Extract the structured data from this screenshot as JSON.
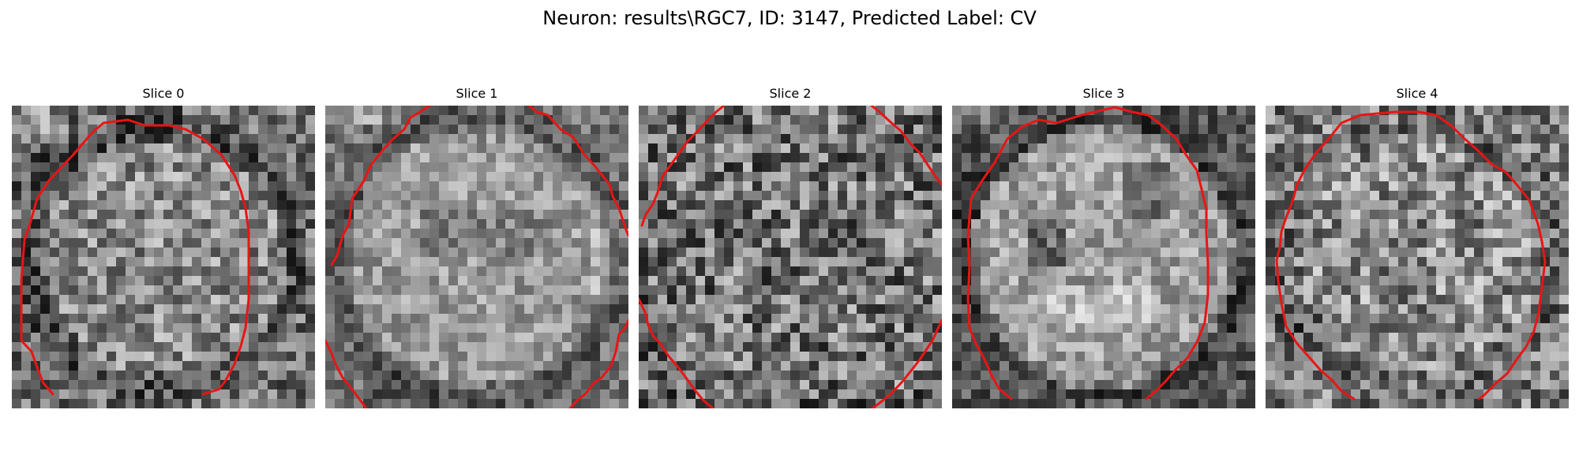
{
  "figure": {
    "title": "Neuron: results\\RGC7, ID: 3147, Predicted Label: CV"
  },
  "slices": [
    {
      "title": "Slice 0"
    },
    {
      "title": "Slice 1"
    },
    {
      "title": "Slice 2"
    },
    {
      "title": "Slice 3"
    },
    {
      "title": "Slice 4"
    }
  ],
  "colors": {
    "contour": "#e81515",
    "background": "#ffffff"
  }
}
